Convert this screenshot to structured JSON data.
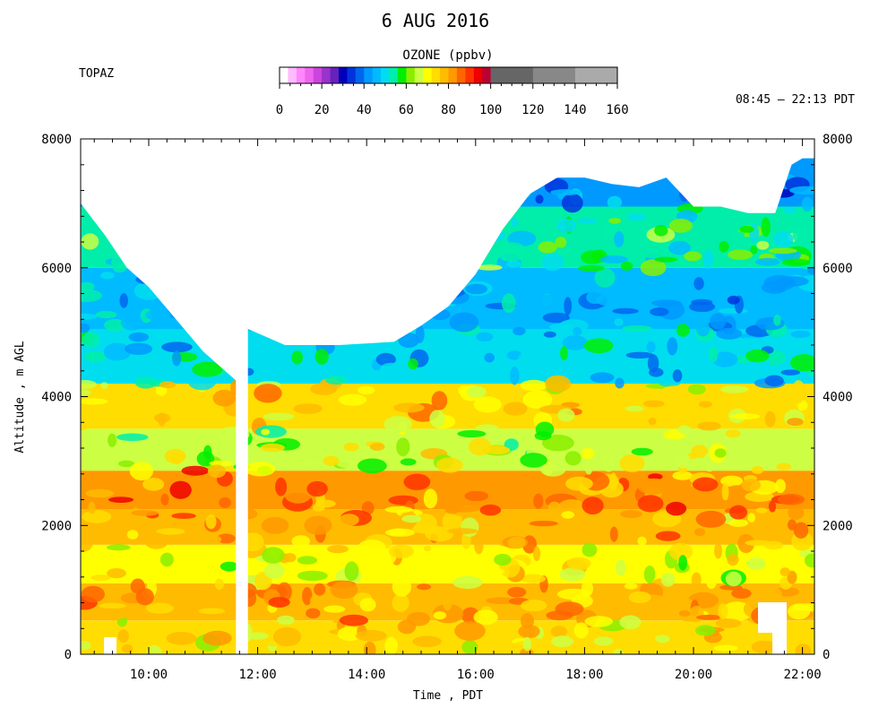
{
  "chart_data": {
    "type": "heatmap",
    "title": "6 AUG 2016",
    "station": "TOPAZ",
    "time_range": "08:45 – 22:13 PDT",
    "colorbar": {
      "label": "OZONE (ppbv)",
      "range": [
        0,
        160
      ],
      "tick_labels": [
        "0",
        "20",
        "40",
        "60",
        "80",
        "100",
        "120",
        "140",
        "160"
      ],
      "colors": [
        "#ffffff",
        "#ffbbff",
        "#ff88ff",
        "#ee66ee",
        "#cc44dd",
        "#9933cc",
        "#6622bb",
        "#0000bb",
        "#0033dd",
        "#0066ee",
        "#0099ff",
        "#00bbff",
        "#00ddee",
        "#00eeaa",
        "#00ee00",
        "#88ee00",
        "#ccff44",
        "#ffff00",
        "#ffdd00",
        "#ffbb00",
        "#ff9900",
        "#ff6600",
        "#ff3300",
        "#ee0000",
        "#bb0033",
        "#666666",
        "#888888",
        "#aaaaaa",
        "#cccccc"
      ]
    },
    "x": {
      "label": "Time , PDT",
      "range_hours": [
        8.75,
        22.22
      ],
      "ticks": [
        10,
        12,
        14,
        16,
        18,
        20,
        22
      ],
      "tick_labels": [
        "10:00",
        "12:00",
        "14:00",
        "16:00",
        "18:00",
        "20:00",
        "22:00"
      ]
    },
    "y": {
      "label": "Altitude , m AGL",
      "range": [
        0,
        8000
      ],
      "ticks": [
        0,
        2000,
        4000,
        6000,
        8000
      ],
      "tick_labels": [
        "0",
        "2000",
        "4000",
        "6000",
        "8000"
      ]
    },
    "data_gap_hours": [
      11.6,
      11.82
    ],
    "top_of_data_m": {
      "times": [
        8.75,
        9.2,
        9.6,
        10.0,
        10.5,
        11.0,
        11.6,
        11.82,
        12.5,
        13.5,
        14.5,
        15.0,
        15.5,
        16.0,
        16.5,
        17.0,
        17.5,
        18.0,
        18.5,
        19.0,
        19.5,
        20.0,
        20.5,
        21.0,
        21.5,
        21.8,
        22.0,
        22.22
      ],
      "values": [
        7000,
        6500,
        6000,
        5700,
        5200,
        4700,
        4250,
        5050,
        4800,
        4800,
        4850,
        5100,
        5400,
        5900,
        6600,
        7150,
        7400,
        7400,
        7300,
        7250,
        7400,
        6950,
        6950,
        6850,
        6850,
        7600,
        7700,
        7700
      ]
    },
    "layers": [
      {
        "altitude_m": 250,
        "ozone_ppbv": 72
      },
      {
        "altitude_m": 800,
        "ozone_ppbv": 78
      },
      {
        "altitude_m": 1400,
        "ozone_ppbv": 70
      },
      {
        "altitude_m": 2000,
        "ozone_ppbv": 78
      },
      {
        "altitude_m": 2500,
        "ozone_ppbv": 82
      },
      {
        "altitude_m": 3200,
        "ozone_ppbv": 66
      },
      {
        "altitude_m": 3800,
        "ozone_ppbv": 74
      },
      {
        "altitude_m": 4600,
        "ozone_ppbv": 48
      },
      {
        "altitude_m": 5500,
        "ozone_ppbv": 46
      },
      {
        "altitude_m": 6500,
        "ozone_ppbv": 54
      },
      {
        "altitude_m": 7400,
        "ozone_ppbv": 40
      }
    ]
  }
}
